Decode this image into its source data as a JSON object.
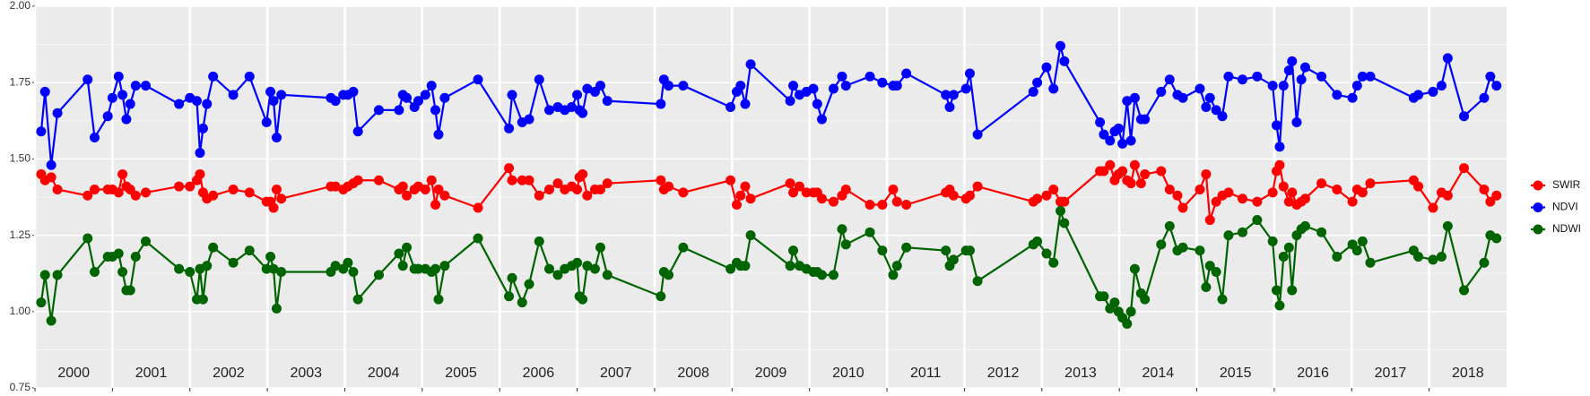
{
  "chart_data": {
    "type": "line",
    "x": [
      2000.08,
      2000.13,
      2000.21,
      2000.29,
      2000.68,
      2000.77,
      2000.94,
      2001.0,
      2001.08,
      2001.13,
      2001.18,
      2001.23,
      2001.3,
      2001.43,
      2001.86,
      2002.0,
      2002.09,
      2002.13,
      2002.17,
      2002.22,
      2002.3,
      2002.56,
      2002.77,
      2002.99,
      2003.04,
      2003.08,
      2003.12,
      2003.18,
      2003.82,
      2003.88,
      2003.98,
      2004.04,
      2004.11,
      2004.17,
      2004.44,
      2004.7,
      2004.75,
      2004.8,
      2004.9,
      2004.95,
      2005.04,
      2005.12,
      2005.17,
      2005.21,
      2005.29,
      2005.72,
      2006.12,
      2006.16,
      2006.29,
      2006.38,
      2006.51,
      2006.64,
      2006.75,
      2006.84,
      2006.93,
      2007.0,
      2007.03,
      2007.07,
      2007.13,
      2007.23,
      2007.3,
      2007.39,
      2008.08,
      2008.12,
      2008.18,
      2008.37,
      2008.98,
      2009.06,
      2009.11,
      2009.17,
      2009.24,
      2009.75,
      2009.79,
      2009.87,
      2009.96,
      2010.05,
      2010.1,
      2010.16,
      2010.31,
      2010.42,
      2010.47,
      2010.78,
      2010.94,
      2011.08,
      2011.13,
      2011.25,
      2011.76,
      2011.81,
      2011.86,
      2012.02,
      2012.07,
      2012.17,
      2012.89,
      2012.94,
      2013.06,
      2013.15,
      2013.24,
      2013.29,
      2013.75,
      2013.8,
      2013.88,
      2013.94,
      2013.99,
      2014.04,
      2014.1,
      2014.15,
      2014.2,
      2014.28,
      2014.33,
      2014.54,
      2014.65,
      2014.75,
      2014.82,
      2015.04,
      2015.12,
      2015.17,
      2015.25,
      2015.33,
      2015.41,
      2015.59,
      2015.78,
      2015.98,
      2016.03,
      2016.07,
      2016.12,
      2016.19,
      2016.23,
      2016.29,
      2016.35,
      2016.4,
      2016.61,
      2016.81,
      2017.01,
      2017.07,
      2017.14,
      2017.24,
      2017.8,
      2017.86,
      2018.05,
      2018.16,
      2018.24,
      2018.45,
      2018.71,
      2018.79,
      2018.87
    ],
    "series": [
      {
        "name": "SWIR",
        "color": "#ff0000",
        "values": [
          1.45,
          1.43,
          1.44,
          1.4,
          1.38,
          1.4,
          1.4,
          1.4,
          1.39,
          1.45,
          1.41,
          1.4,
          1.38,
          1.39,
          1.41,
          1.41,
          1.43,
          1.45,
          1.39,
          1.37,
          1.38,
          1.4,
          1.39,
          1.36,
          1.36,
          1.34,
          1.4,
          1.37,
          1.41,
          1.41,
          1.4,
          1.41,
          1.42,
          1.43,
          1.43,
          1.4,
          1.41,
          1.38,
          1.4,
          1.41,
          1.4,
          1.43,
          1.35,
          1.4,
          1.38,
          1.34,
          1.47,
          1.43,
          1.43,
          1.43,
          1.38,
          1.4,
          1.42,
          1.4,
          1.41,
          1.4,
          1.44,
          1.45,
          1.38,
          1.4,
          1.4,
          1.42,
          1.43,
          1.4,
          1.41,
          1.39,
          1.43,
          1.35,
          1.38,
          1.41,
          1.37,
          1.42,
          1.39,
          1.41,
          1.39,
          1.39,
          1.39,
          1.37,
          1.36,
          1.38,
          1.4,
          1.35,
          1.35,
          1.4,
          1.36,
          1.35,
          1.39,
          1.4,
          1.38,
          1.37,
          1.38,
          1.41,
          1.36,
          1.37,
          1.38,
          1.4,
          1.36,
          1.36,
          1.46,
          1.46,
          1.48,
          1.43,
          1.45,
          1.46,
          1.43,
          1.42,
          1.48,
          1.42,
          1.45,
          1.46,
          1.4,
          1.38,
          1.34,
          1.4,
          1.45,
          1.3,
          1.36,
          1.38,
          1.39,
          1.37,
          1.36,
          1.39,
          1.46,
          1.48,
          1.41,
          1.36,
          1.39,
          1.35,
          1.36,
          1.37,
          1.42,
          1.4,
          1.36,
          1.4,
          1.39,
          1.42,
          1.43,
          1.41,
          1.34,
          1.39,
          1.38,
          1.47,
          1.4,
          1.36,
          1.38
        ]
      },
      {
        "name": "NDVI",
        "color": "#0000ff",
        "values": [
          1.59,
          1.72,
          1.48,
          1.65,
          1.76,
          1.57,
          1.64,
          1.7,
          1.77,
          1.71,
          1.63,
          1.68,
          1.74,
          1.74,
          1.68,
          1.7,
          1.69,
          1.52,
          1.6,
          1.68,
          1.77,
          1.71,
          1.77,
          1.62,
          1.72,
          1.69,
          1.57,
          1.71,
          1.7,
          1.69,
          1.71,
          1.71,
          1.72,
          1.59,
          1.66,
          1.66,
          1.71,
          1.7,
          1.67,
          1.69,
          1.71,
          1.74,
          1.66,
          1.58,
          1.7,
          1.76,
          1.6,
          1.71,
          1.62,
          1.63,
          1.76,
          1.66,
          1.67,
          1.66,
          1.67,
          1.71,
          1.66,
          1.65,
          1.73,
          1.72,
          1.74,
          1.69,
          1.68,
          1.76,
          1.74,
          1.74,
          1.67,
          1.72,
          1.74,
          1.68,
          1.81,
          1.69,
          1.74,
          1.71,
          1.72,
          1.73,
          1.68,
          1.63,
          1.73,
          1.77,
          1.74,
          1.77,
          1.75,
          1.74,
          1.74,
          1.78,
          1.71,
          1.67,
          1.71,
          1.73,
          1.78,
          1.58,
          1.72,
          1.75,
          1.8,
          1.73,
          1.87,
          1.82,
          1.62,
          1.58,
          1.56,
          1.59,
          1.6,
          1.55,
          1.69,
          1.56,
          1.7,
          1.63,
          1.63,
          1.72,
          1.76,
          1.71,
          1.7,
          1.73,
          1.67,
          1.7,
          1.66,
          1.64,
          1.77,
          1.76,
          1.77,
          1.74,
          1.61,
          1.54,
          1.74,
          1.79,
          1.82,
          1.62,
          1.76,
          1.8,
          1.77,
          1.71,
          1.7,
          1.74,
          1.77,
          1.77,
          1.7,
          1.71,
          1.72,
          1.74,
          1.83,
          1.64,
          1.7,
          1.77,
          1.74
        ]
      },
      {
        "name": "NDWI",
        "color": "#006400",
        "values": [
          1.03,
          1.12,
          0.97,
          1.12,
          1.24,
          1.13,
          1.18,
          1.18,
          1.19,
          1.13,
          1.07,
          1.07,
          1.18,
          1.23,
          1.14,
          1.13,
          1.04,
          1.14,
          1.04,
          1.15,
          1.21,
          1.16,
          1.2,
          1.14,
          1.18,
          1.14,
          1.01,
          1.13,
          1.13,
          1.15,
          1.14,
          1.16,
          1.13,
          1.04,
          1.12,
          1.19,
          1.15,
          1.21,
          1.14,
          1.14,
          1.14,
          1.13,
          1.14,
          1.04,
          1.15,
          1.24,
          1.05,
          1.11,
          1.03,
          1.09,
          1.23,
          1.14,
          1.12,
          1.14,
          1.15,
          1.16,
          1.05,
          1.04,
          1.15,
          1.14,
          1.21,
          1.12,
          1.05,
          1.13,
          1.12,
          1.21,
          1.14,
          1.16,
          1.15,
          1.15,
          1.25,
          1.15,
          1.2,
          1.15,
          1.14,
          1.13,
          1.13,
          1.12,
          1.12,
          1.27,
          1.22,
          1.26,
          1.2,
          1.12,
          1.15,
          1.21,
          1.2,
          1.15,
          1.17,
          1.2,
          1.2,
          1.1,
          1.22,
          1.23,
          1.19,
          1.16,
          1.33,
          1.29,
          1.05,
          1.05,
          1.01,
          1.03,
          1.0,
          0.98,
          0.96,
          1.0,
          1.14,
          1.06,
          1.04,
          1.22,
          1.28,
          1.2,
          1.21,
          1.2,
          1.08,
          1.15,
          1.13,
          1.04,
          1.25,
          1.26,
          1.3,
          1.23,
          1.07,
          1.02,
          1.18,
          1.21,
          1.07,
          1.25,
          1.27,
          1.28,
          1.26,
          1.18,
          1.22,
          1.2,
          1.23,
          1.16,
          1.2,
          1.18,
          1.17,
          1.18,
          1.28,
          1.07,
          1.16,
          1.25,
          1.24
        ]
      }
    ],
    "xlim": [
      2000,
      2019
    ],
    "xticks": [
      2000,
      2001,
      2002,
      2003,
      2004,
      2005,
      2006,
      2007,
      2008,
      2009,
      2010,
      2011,
      2012,
      2013,
      2014,
      2015,
      2016,
      2017,
      2018
    ],
    "ylim": [
      0.75,
      2.0
    ],
    "yticks": [
      {
        "value": 0.75,
        "label": "0.75"
      },
      {
        "value": 1.0,
        "label": "1.00"
      },
      {
        "value": 1.25,
        "label": "1.25"
      },
      {
        "value": 1.5,
        "label": "1.50"
      },
      {
        "value": 1.75,
        "label": "1.75"
      },
      {
        "value": 2.0,
        "label": "2.00"
      }
    ],
    "grid": true,
    "legend": "right"
  }
}
